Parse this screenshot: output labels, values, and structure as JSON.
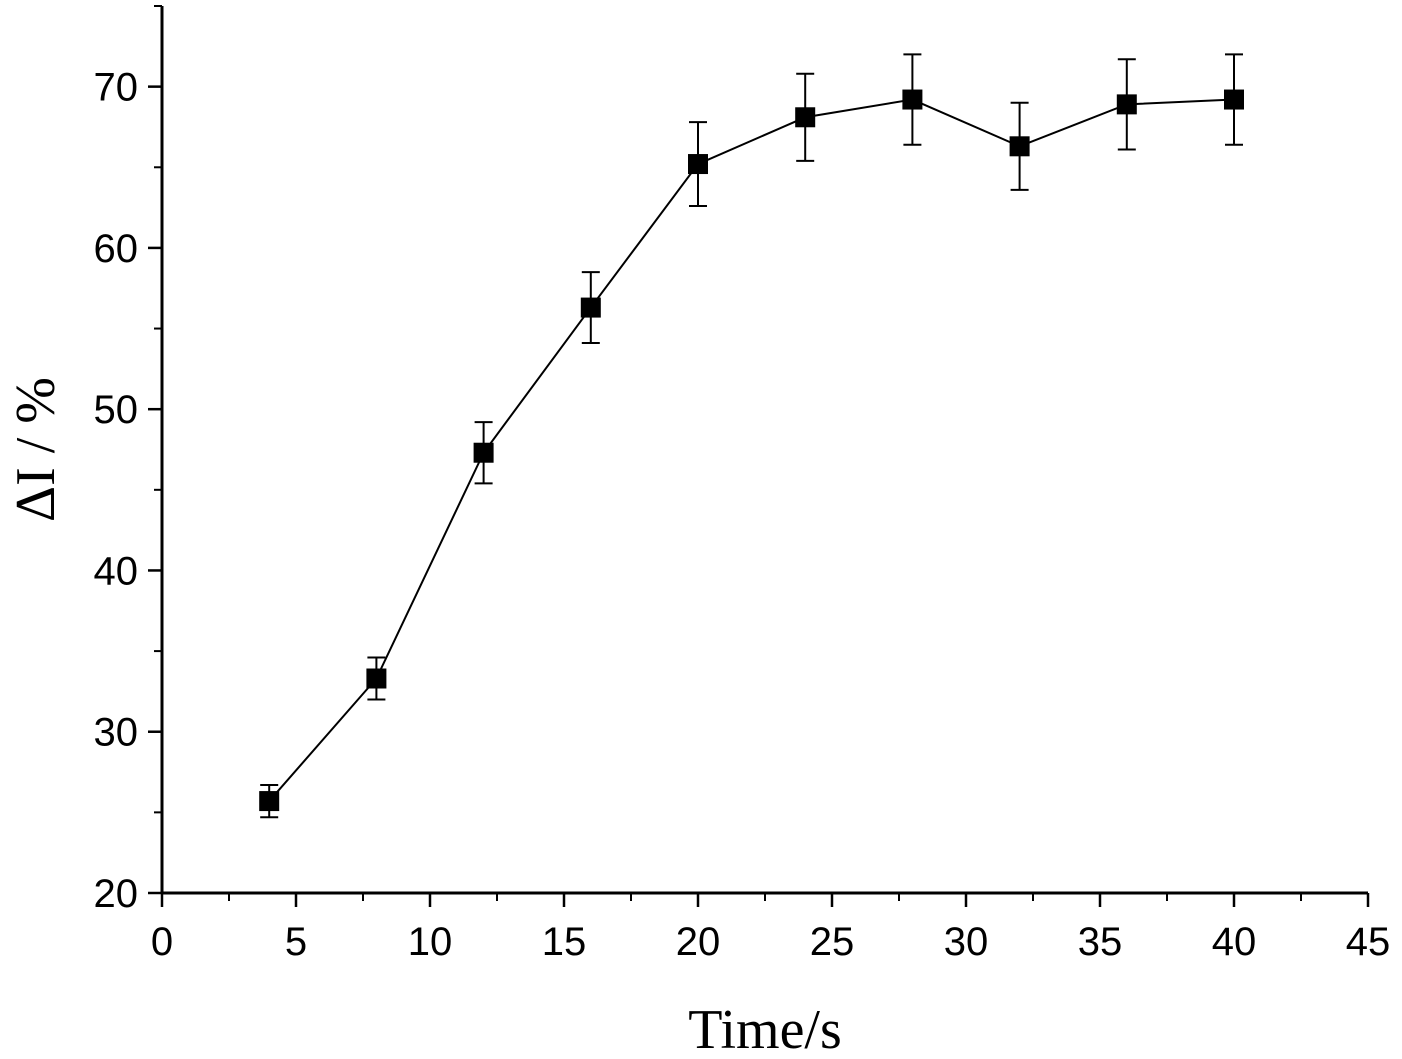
{
  "chart_data": {
    "type": "line",
    "title": "",
    "xlabel": "Time/s",
    "ylabel": "ΔI / %",
    "xlim": [
      0,
      45
    ],
    "ylim": [
      20,
      75
    ],
    "x_ticks": [
      0,
      5,
      10,
      15,
      20,
      25,
      30,
      35,
      40,
      45
    ],
    "y_ticks": [
      20,
      30,
      40,
      50,
      60,
      70
    ],
    "x_minor_step": 2.5,
    "y_minor_step": 5,
    "grid": false,
    "marker": "square",
    "colors": {
      "series": "#000000",
      "axis": "#000000"
    },
    "series": [
      {
        "name": "ΔI",
        "x": [
          4,
          8,
          12,
          16,
          20,
          24,
          28,
          32,
          36,
          40
        ],
        "y": [
          25.7,
          33.3,
          47.3,
          56.3,
          65.2,
          68.1,
          69.2,
          66.3,
          68.9,
          69.2
        ],
        "error": [
          1.0,
          1.3,
          1.9,
          2.2,
          2.6,
          2.7,
          2.8,
          2.7,
          2.8,
          2.8
        ]
      }
    ]
  }
}
